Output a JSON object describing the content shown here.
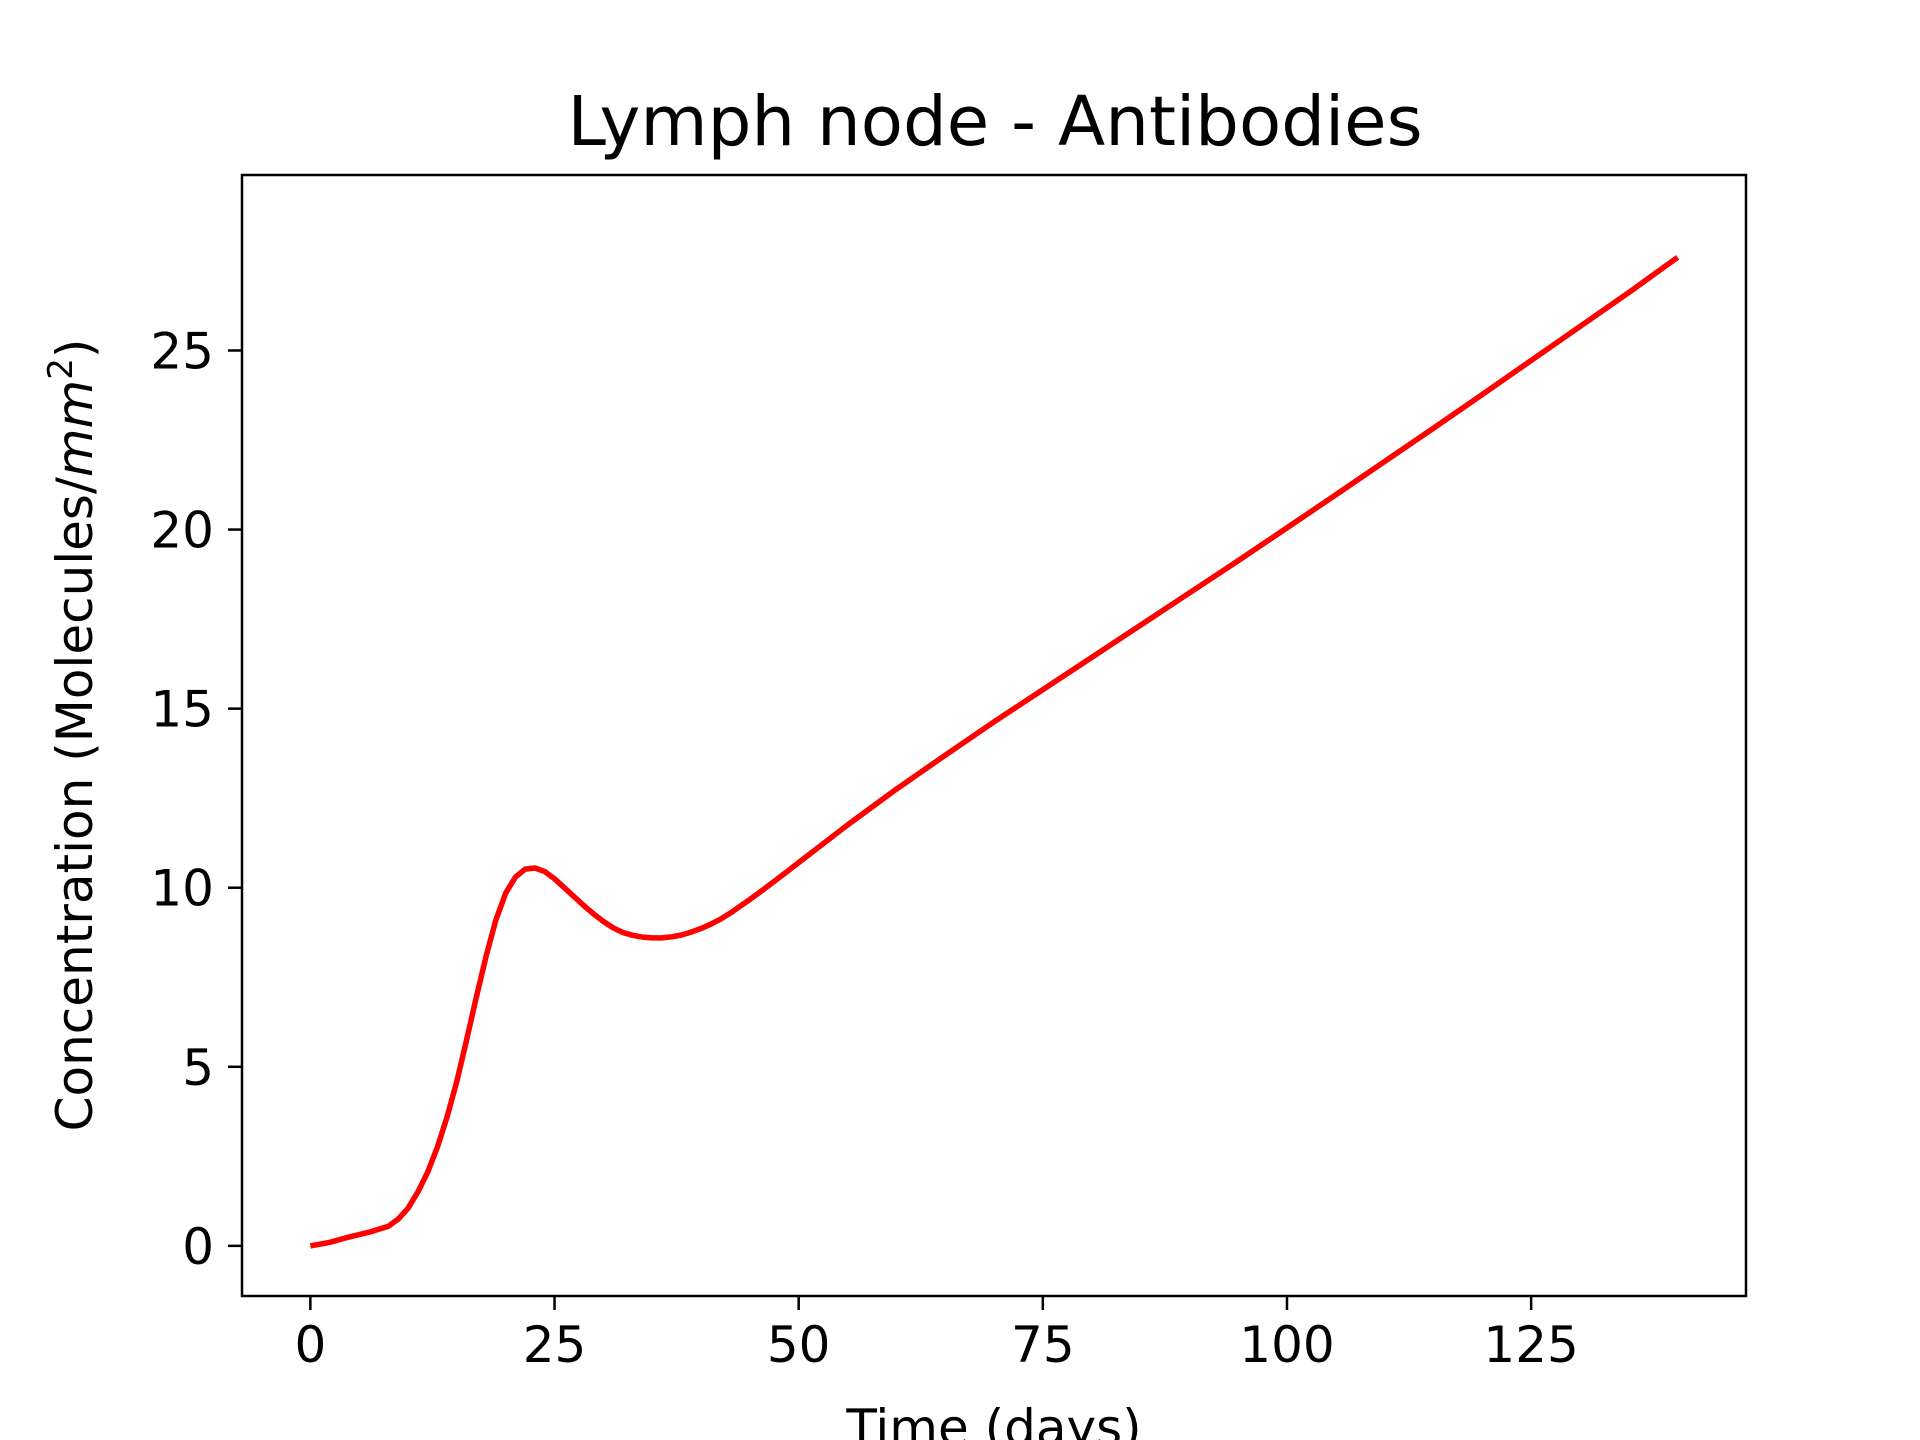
{
  "chart_data": {
    "type": "line",
    "title": "Lymph node - Antibodies",
    "xlabel": "Time (days)",
    "ylabel_main": "Concentration (Molecules/",
    "ylabel_unit": "mm",
    "ylabel_exp": "2",
    "ylabel_close": ")",
    "xlim": [
      -7,
      147
    ],
    "ylim": [
      -1.4,
      29.9
    ],
    "xticks": [
      0,
      25,
      50,
      75,
      100,
      125
    ],
    "yticks": [
      0,
      5,
      10,
      15,
      20,
      25
    ],
    "grid": false,
    "series": [
      {
        "color": "#ff0000",
        "x": [
          0,
          2,
          4,
          6,
          8,
          9,
          10,
          11,
          12,
          13,
          14,
          15,
          16,
          17,
          18,
          19,
          20,
          21,
          22,
          23,
          24,
          25,
          26,
          27,
          28,
          29,
          30,
          31,
          32,
          33,
          34,
          35,
          36,
          37,
          38,
          39,
          40,
          41,
          42,
          43,
          44,
          45,
          46,
          48,
          50,
          55,
          60,
          65,
          70,
          75,
          80,
          85,
          90,
          95,
          100,
          105,
          110,
          115,
          120,
          125,
          130,
          135,
          140
        ],
        "y": [
          0.0,
          0.1,
          0.25,
          0.38,
          0.55,
          0.75,
          1.05,
          1.5,
          2.05,
          2.75,
          3.6,
          4.6,
          5.75,
          6.95,
          8.1,
          9.1,
          9.85,
          10.3,
          10.52,
          10.55,
          10.45,
          10.25,
          10.0,
          9.75,
          9.5,
          9.27,
          9.06,
          8.88,
          8.75,
          8.67,
          8.62,
          8.6,
          8.6,
          8.63,
          8.68,
          8.76,
          8.86,
          8.98,
          9.12,
          9.29,
          9.48,
          9.67,
          9.87,
          10.28,
          10.7,
          11.75,
          12.75,
          13.7,
          14.63,
          15.53,
          16.43,
          17.33,
          18.23,
          19.13,
          20.05,
          20.97,
          21.9,
          22.83,
          23.77,
          24.72,
          25.67,
          26.62,
          27.6
        ]
      }
    ]
  }
}
